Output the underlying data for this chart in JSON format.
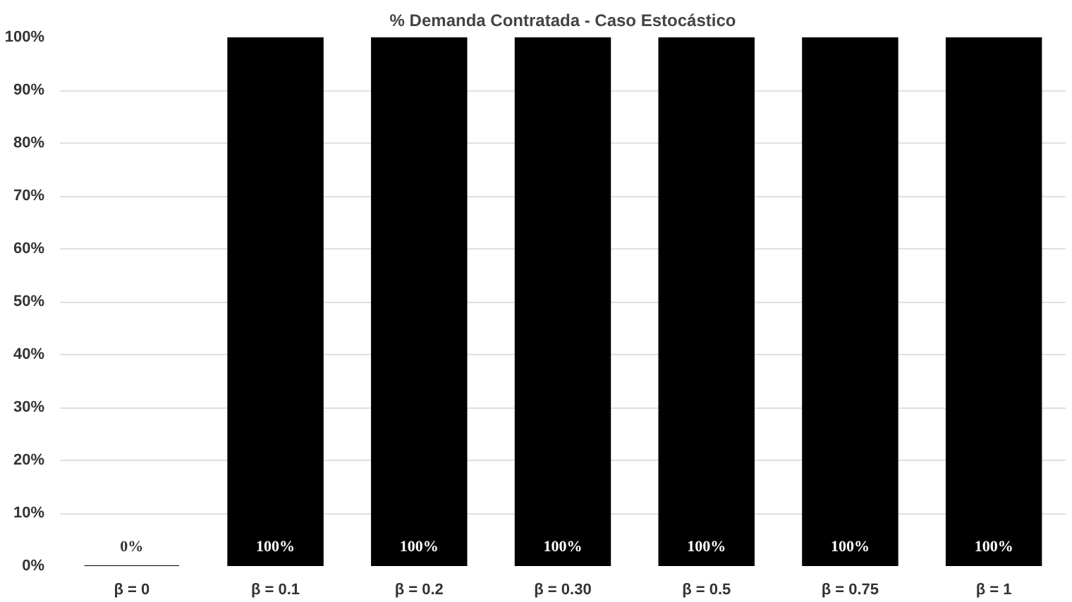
{
  "chart_data": {
    "type": "bar",
    "title": "% Demanda Contratada - Caso Estocástico",
    "categories": [
      "β = 0",
      "β = 0.1",
      "β = 0.2",
      "β = 0.30",
      "β = 0.5",
      "β = 0.75",
      "β = 1"
    ],
    "values": [
      0,
      100,
      100,
      100,
      100,
      100,
      100
    ],
    "color": "#000000",
    "value_labels": [
      "0%",
      "100%",
      "100%",
      "100%",
      "100%",
      "100%",
      "100%"
    ],
    "ylim": [
      0,
      100
    ],
    "yticks": [
      {
        "value": 0,
        "label": "0%"
      },
      {
        "value": 10,
        "label": "10%"
      },
      {
        "value": 20,
        "label": "20%"
      },
      {
        "value": 30,
        "label": "30%"
      },
      {
        "value": 40,
        "label": "40%"
      },
      {
        "value": 50,
        "label": "50%"
      },
      {
        "value": 60,
        "label": "60%"
      },
      {
        "value": 70,
        "label": "70%"
      },
      {
        "value": 80,
        "label": "80%"
      },
      {
        "value": 90,
        "label": "90%"
      },
      {
        "value": 100,
        "label": "100%"
      }
    ],
    "grid": "y"
  }
}
